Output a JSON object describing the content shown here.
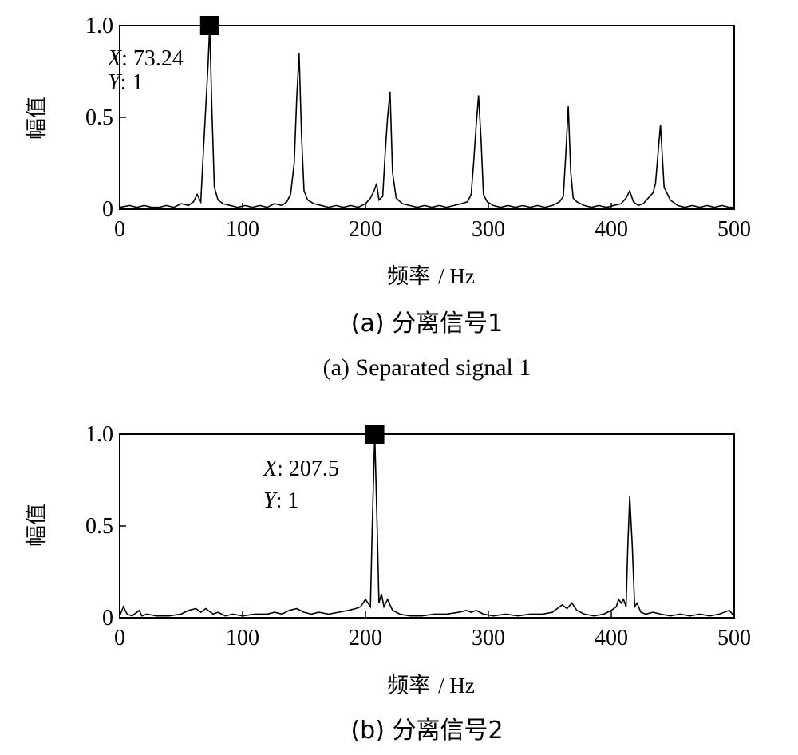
{
  "chart_data": [
    {
      "type": "line",
      "ylabel": "幅值",
      "xlabel_cn": "频率",
      "xlabel_unit": "/ Hz",
      "caption_cn": "(a) 分离信号1",
      "caption_en": "(a) Separated signal 1",
      "xlim": [
        0,
        500
      ],
      "ylim": [
        0,
        1
      ],
      "x_ticks": [
        "0",
        "100",
        "200",
        "300",
        "400",
        "500"
      ],
      "y_ticks": [
        "0",
        "0.5",
        "1.0"
      ],
      "datatip": {
        "x": "73.24",
        "y": "1",
        "x_label": "X",
        "y_label": "Y"
      },
      "series": [
        {
          "x": [
            0,
            8,
            14,
            20,
            26,
            32,
            38,
            44,
            50,
            56,
            60,
            63,
            66,
            68,
            70,
            72,
            73.24,
            75,
            77,
            80,
            84,
            90,
            96,
            102,
            108,
            114,
            120,
            126,
            132,
            136,
            139,
            142,
            144,
            146,
            148,
            150,
            153,
            158,
            164,
            170,
            176,
            182,
            188,
            194,
            200,
            204,
            207,
            209,
            211,
            214,
            216,
            218,
            220,
            222,
            225,
            230,
            236,
            242,
            248,
            254,
            260,
            266,
            272,
            278,
            283,
            286,
            288,
            290,
            292,
            294,
            296,
            299,
            304,
            310,
            316,
            322,
            328,
            334,
            340,
            346,
            352,
            358,
            361,
            363,
            365,
            367,
            369,
            372,
            378,
            384,
            390,
            396,
            402,
            408,
            412,
            415,
            418,
            422,
            426,
            430,
            434,
            436,
            438,
            440,
            443,
            448,
            454,
            460,
            466,
            472,
            478,
            484,
            490,
            496,
            500
          ],
          "y": [
            0.01,
            0.02,
            0.01,
            0.02,
            0.01,
            0.01,
            0.02,
            0.01,
            0.03,
            0.02,
            0.04,
            0.08,
            0.04,
            0.3,
            0.55,
            0.8,
            1.0,
            0.55,
            0.12,
            0.05,
            0.03,
            0.02,
            0.01,
            0.02,
            0.01,
            0.02,
            0.01,
            0.03,
            0.02,
            0.04,
            0.08,
            0.25,
            0.6,
            0.85,
            0.4,
            0.1,
            0.05,
            0.03,
            0.02,
            0.01,
            0.02,
            0.01,
            0.02,
            0.01,
            0.03,
            0.06,
            0.1,
            0.14,
            0.05,
            0.07,
            0.3,
            0.5,
            0.64,
            0.2,
            0.06,
            0.03,
            0.02,
            0.01,
            0.02,
            0.01,
            0.02,
            0.01,
            0.02,
            0.03,
            0.04,
            0.08,
            0.25,
            0.45,
            0.62,
            0.38,
            0.08,
            0.04,
            0.02,
            0.01,
            0.02,
            0.01,
            0.02,
            0.01,
            0.02,
            0.01,
            0.02,
            0.04,
            0.07,
            0.3,
            0.56,
            0.2,
            0.06,
            0.04,
            0.02,
            0.01,
            0.02,
            0.01,
            0.02,
            0.03,
            0.06,
            0.1,
            0.04,
            0.02,
            0.03,
            0.06,
            0.09,
            0.14,
            0.3,
            0.46,
            0.12,
            0.05,
            0.02,
            0.01,
            0.02,
            0.01,
            0.02,
            0.01,
            0.02,
            0.01,
            0.01
          ]
        }
      ]
    },
    {
      "type": "line",
      "ylabel": "幅值",
      "xlabel_cn": "频率",
      "xlabel_unit": "/ Hz",
      "caption_cn": "(b) 分离信号2",
      "xlim": [
        0,
        500
      ],
      "ylim": [
        0,
        1
      ],
      "x_ticks": [
        "0",
        "100",
        "200",
        "300",
        "400",
        "500"
      ],
      "y_ticks": [
        "0",
        "0.5",
        "1.0"
      ],
      "datatip": {
        "x": "207.5",
        "y": "1",
        "x_label": "X",
        "y_label": "Y"
      },
      "series": [
        {
          "x": [
            0,
            3,
            6,
            10,
            16,
            18,
            22,
            30,
            40,
            50,
            56,
            62,
            66,
            70,
            76,
            80,
            86,
            92,
            100,
            110,
            120,
            126,
            132,
            138,
            144,
            150,
            156,
            162,
            170,
            178,
            186,
            192,
            196,
            200,
            202,
            204,
            205.5,
            207.5,
            209.5,
            211,
            213,
            215,
            218,
            222,
            228,
            236,
            246,
            256,
            266,
            276,
            282,
            286,
            290,
            296,
            304,
            314,
            324,
            334,
            344,
            352,
            356,
            360,
            364,
            368,
            372,
            378,
            386,
            394,
            400,
            404,
            406,
            408,
            410,
            412,
            413.5,
            415,
            417,
            419,
            421,
            424,
            428,
            434,
            440,
            448,
            456,
            464,
            472,
            480,
            488,
            496,
            500
          ],
          "y": [
            0.01,
            0.06,
            0.02,
            0.01,
            0.04,
            0.01,
            0.02,
            0.01,
            0.01,
            0.02,
            0.04,
            0.05,
            0.03,
            0.05,
            0.02,
            0.03,
            0.01,
            0.02,
            0.01,
            0.02,
            0.02,
            0.03,
            0.02,
            0.04,
            0.05,
            0.03,
            0.02,
            0.03,
            0.02,
            0.03,
            0.04,
            0.05,
            0.06,
            0.1,
            0.08,
            0.06,
            0.5,
            1.0,
            0.5,
            0.08,
            0.13,
            0.06,
            0.1,
            0.04,
            0.02,
            0.01,
            0.01,
            0.02,
            0.02,
            0.03,
            0.04,
            0.03,
            0.04,
            0.02,
            0.01,
            0.02,
            0.01,
            0.02,
            0.02,
            0.03,
            0.05,
            0.07,
            0.05,
            0.08,
            0.04,
            0.02,
            0.01,
            0.02,
            0.04,
            0.06,
            0.1,
            0.08,
            0.1,
            0.06,
            0.4,
            0.66,
            0.4,
            0.06,
            0.08,
            0.03,
            0.02,
            0.03,
            0.02,
            0.01,
            0.02,
            0.01,
            0.02,
            0.01,
            0.02,
            0.04,
            0.01
          ]
        }
      ]
    }
  ]
}
